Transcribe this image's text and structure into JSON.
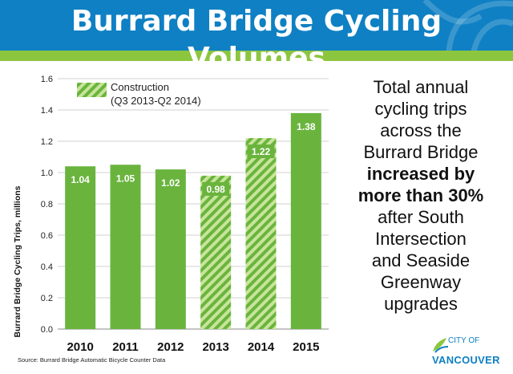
{
  "header": {
    "title": "Burrard Bridge Cycling Volumes",
    "banner_color": "#0f80c3",
    "stripe_color": "#8cc63f"
  },
  "callout": {
    "line1": "Total annual",
    "line2": "cycling trips",
    "line3": "across the",
    "line4": "Burrard Bridge",
    "line5": "increased by",
    "line6": "more than 30%",
    "line7": "after South",
    "line8": "Intersection",
    "line9": "and Seaside",
    "line10": "Greenway",
    "line11": "upgrades"
  },
  "source": "Source: Burrard Bridge Automatic Bicycle Counter Data",
  "logo": {
    "line1": "CITY OF",
    "line2": "VANCOUVER",
    "icon": "leaf-logo-icon"
  },
  "chart_data": {
    "type": "bar",
    "categories": [
      "2010",
      "2011",
      "2012",
      "2013",
      "2014",
      "2015"
    ],
    "values": [
      1.04,
      1.05,
      1.02,
      0.98,
      1.22,
      1.38
    ],
    "labels": [
      "1.04",
      "1.05",
      "1.02",
      "0.98",
      "1.22",
      "1.38"
    ],
    "hatched": [
      false,
      false,
      false,
      true,
      true,
      false
    ],
    "title": "",
    "xlabel": "",
    "ylabel": "Burrard Bridge  Cycling  Trips, millions",
    "ylim": [
      0,
      1.6
    ],
    "yticks": [
      "0.0",
      "0.2",
      "0.4",
      "0.6",
      "0.8",
      "1.0",
      "1.2",
      "1.4",
      "1.6"
    ],
    "ytick_values": [
      0,
      0.2,
      0.4,
      0.6,
      0.8,
      1.0,
      1.2,
      1.4,
      1.6
    ],
    "grid": true,
    "legend": {
      "position": "top-left",
      "label_line1": "Construction",
      "label_line2": "(Q3 2013-Q2 2014)"
    },
    "bar_color": "#6ab43e",
    "hatch_color": "#c7e59a"
  }
}
